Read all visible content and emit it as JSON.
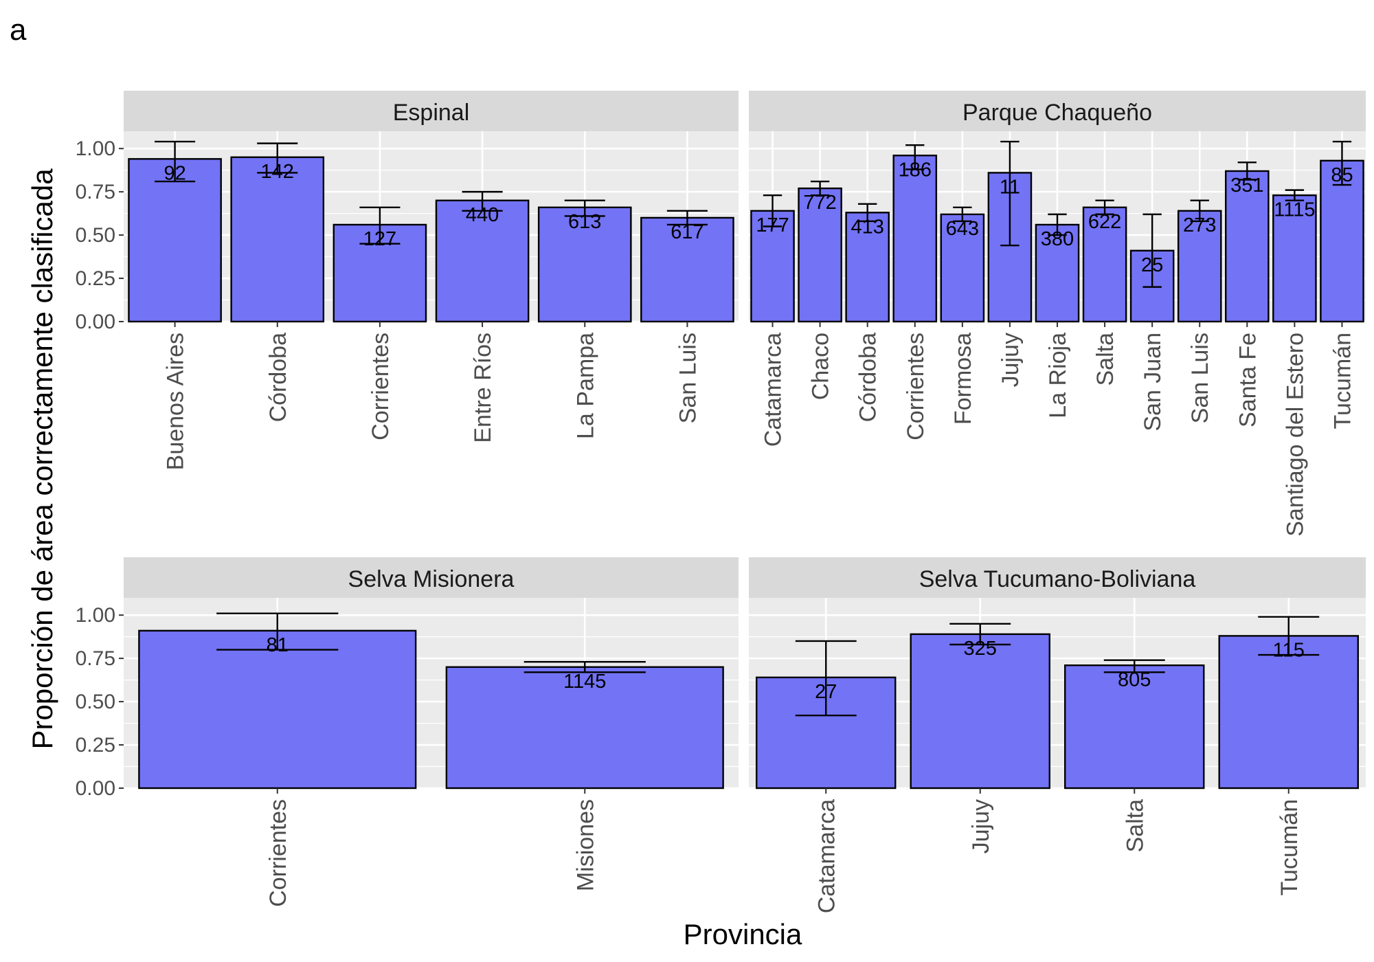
{
  "figure_tag": "a",
  "colors": {
    "bar_fill": "#7373F5",
    "bar_stroke": "#000000",
    "panel_bg": "#EBEBEB",
    "strip_bg": "#D9D9D9",
    "grid": "#FFFFFF"
  },
  "chart_data": {
    "type": "bar",
    "title": "",
    "xlabel": "Provincia",
    "ylabel": "Proporción de área correctamente clasificada",
    "ylim": [
      0,
      1.1
    ],
    "yticks": [
      "0.00",
      "0.25",
      "0.50",
      "0.75",
      "1.00"
    ],
    "grid": true,
    "error_bars": true,
    "panels": [
      {
        "name": "Espinal",
        "categories": [
          "Buenos Aires",
          "Córdoba",
          "Corrientes",
          "Entre Ríos",
          "La Pampa",
          "San Luis"
        ],
        "values": [
          0.94,
          0.95,
          0.56,
          0.7,
          0.66,
          0.6
        ],
        "err_low": [
          0.81,
          0.86,
          0.45,
          0.64,
          0.61,
          0.56
        ],
        "err_high": [
          1.04,
          1.03,
          0.66,
          0.75,
          0.7,
          0.64
        ],
        "labels": [
          "92",
          "142",
          "127",
          "440",
          "613",
          "617"
        ]
      },
      {
        "name": "Parque Chaqueño",
        "categories": [
          "Catamarca",
          "Chaco",
          "Córdoba",
          "Corrientes",
          "Formosa",
          "Jujuy",
          "La Rioja",
          "Salta",
          "San Juan",
          "San Luis",
          "Santa Fe",
          "Santiago del Estero",
          "Tucumán"
        ],
        "values": [
          0.64,
          0.77,
          0.63,
          0.96,
          0.62,
          0.86,
          0.56,
          0.66,
          0.41,
          0.64,
          0.87,
          0.73,
          0.93
        ],
        "err_low": [
          0.55,
          0.73,
          0.58,
          0.88,
          0.58,
          0.44,
          0.5,
          0.62,
          0.2,
          0.58,
          0.82,
          0.7,
          0.79
        ],
        "err_high": [
          0.73,
          0.81,
          0.68,
          1.02,
          0.66,
          1.04,
          0.62,
          0.7,
          0.62,
          0.7,
          0.92,
          0.76,
          1.04
        ],
        "labels": [
          "177",
          "772",
          "413",
          "186",
          "643",
          "11",
          "380",
          "622",
          "25",
          "273",
          "351",
          "1115",
          "85"
        ]
      },
      {
        "name": "Selva Misionera",
        "categories": [
          "Corrientes",
          "Misiones"
        ],
        "values": [
          0.91,
          0.7
        ],
        "err_low": [
          0.8,
          0.67
        ],
        "err_high": [
          1.01,
          0.73
        ],
        "labels": [
          "81",
          "1145"
        ]
      },
      {
        "name": "Selva Tucumano-Boliviana",
        "categories": [
          "Catamarca",
          "Jujuy",
          "Salta",
          "Tucumán"
        ],
        "values": [
          0.64,
          0.89,
          0.71,
          0.88
        ],
        "err_low": [
          0.42,
          0.83,
          0.67,
          0.77
        ],
        "err_high": [
          0.85,
          0.95,
          0.74,
          0.99
        ],
        "labels": [
          "27",
          "325",
          "805",
          "115"
        ]
      }
    ]
  }
}
